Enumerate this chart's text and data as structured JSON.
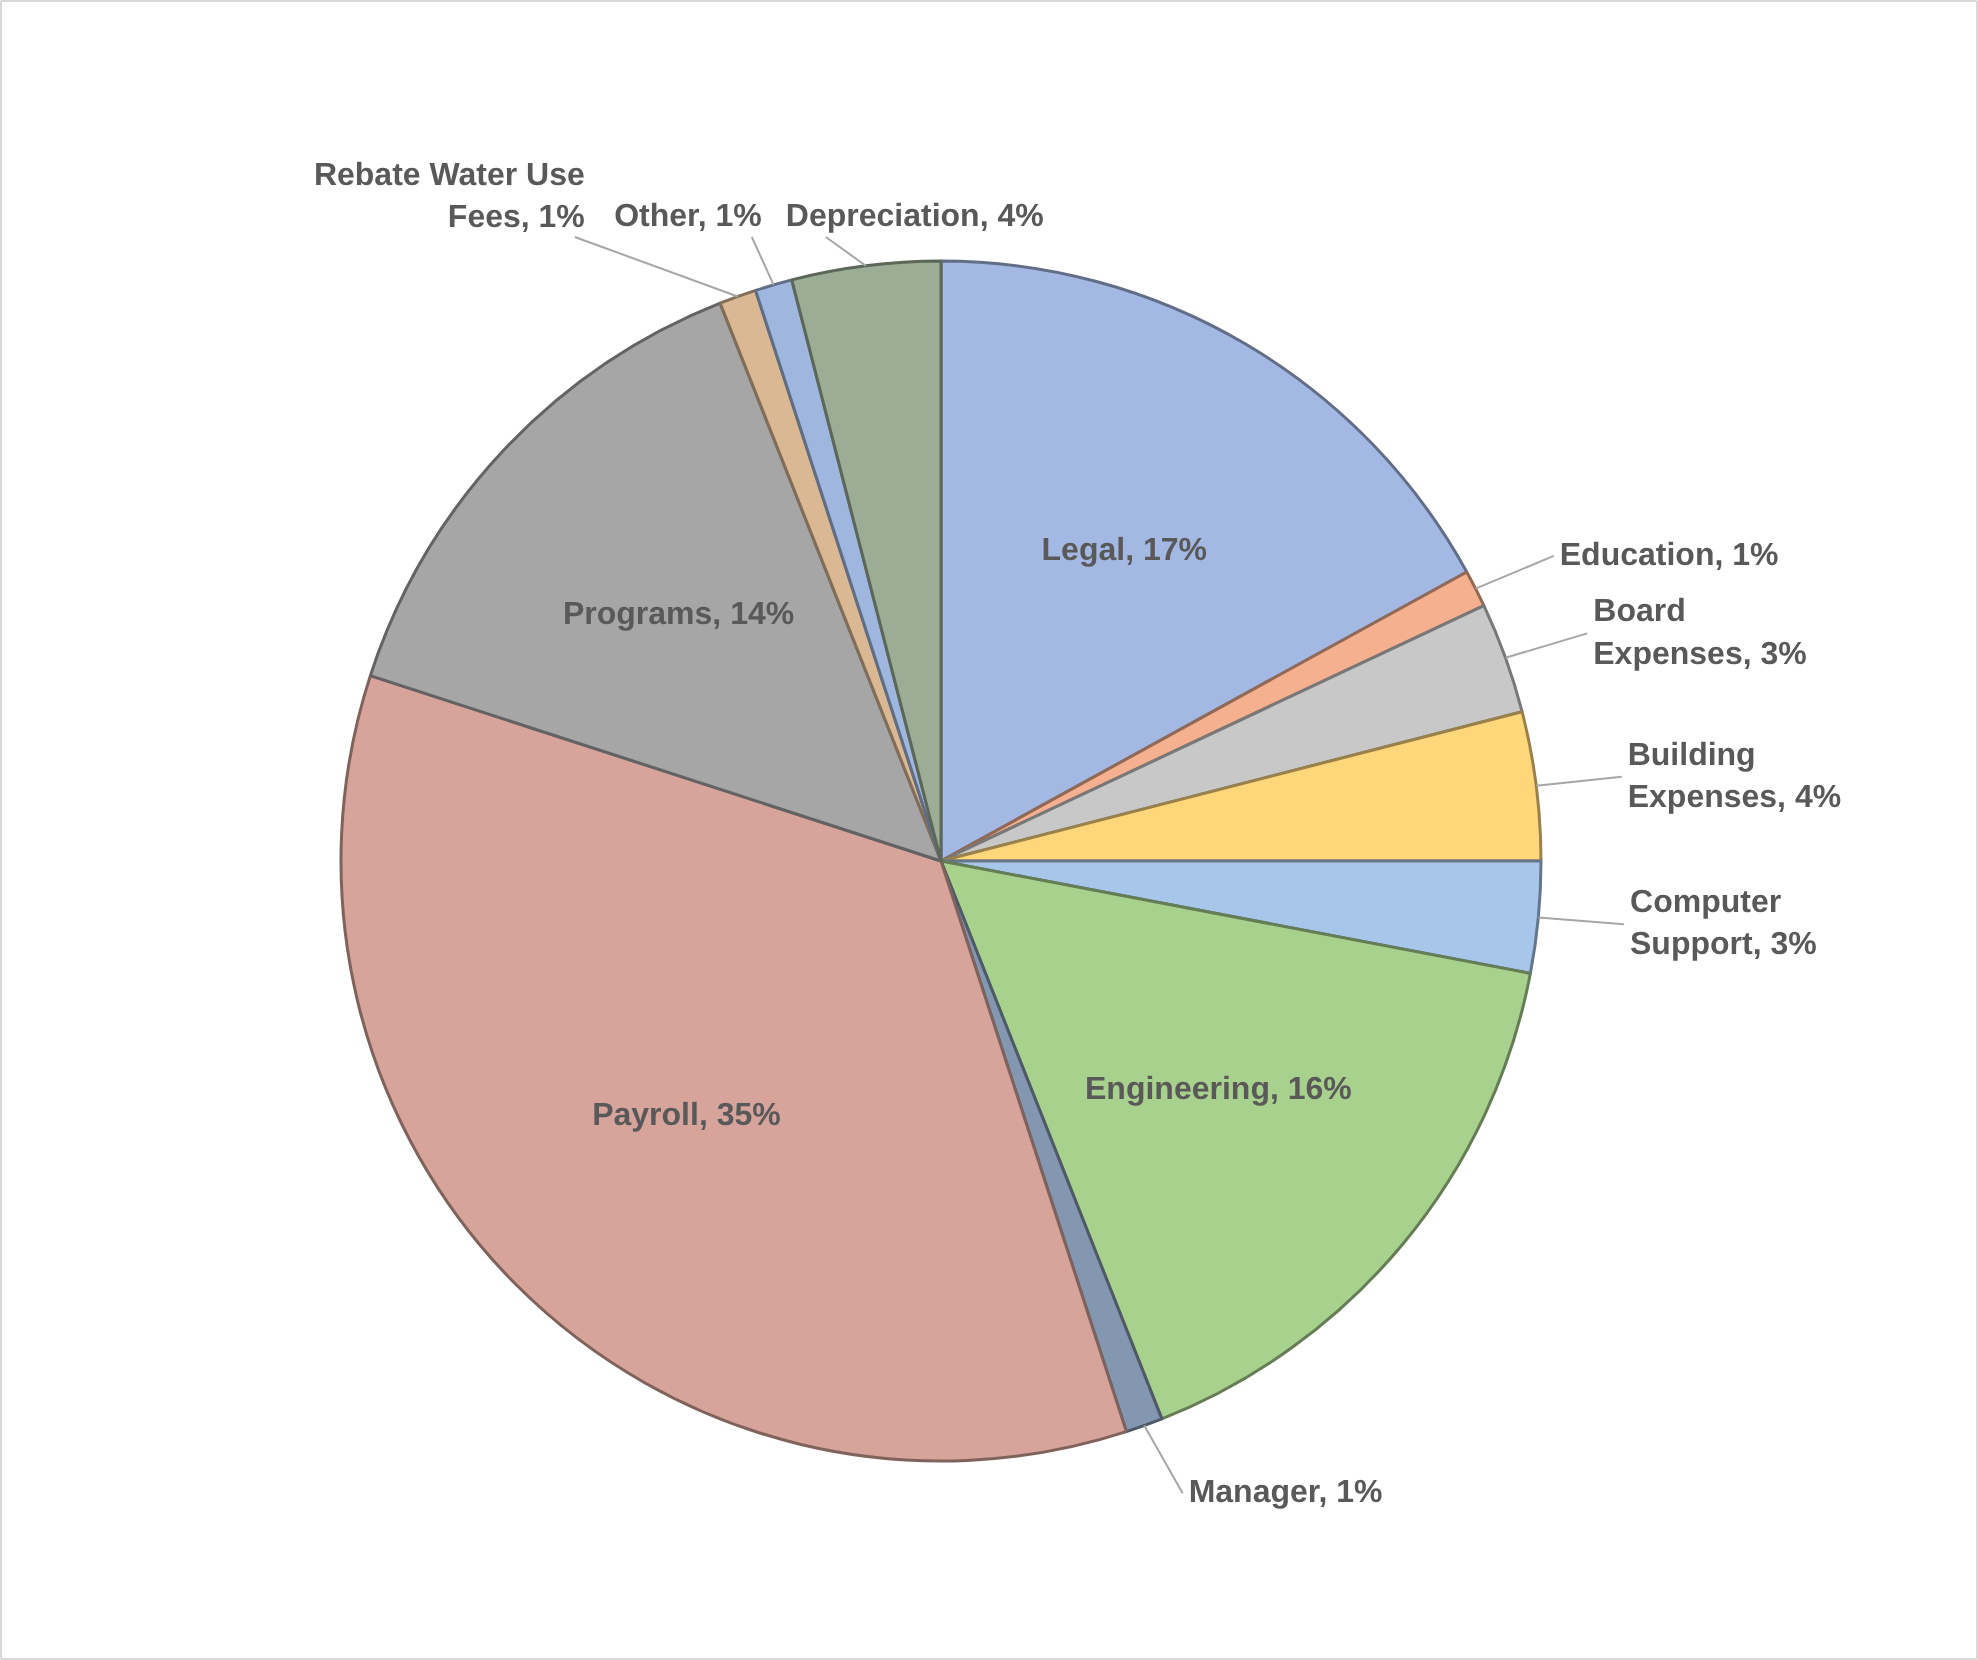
{
  "chart_data": {
    "type": "pie",
    "categories": [
      "Legal",
      "Education",
      "Board Expenses",
      "Building Expenses",
      "Computer Support",
      "Engineering",
      "Manager",
      "Payroll",
      "Programs",
      "Rebate Water Use Fees",
      "Other",
      "Depreciation"
    ],
    "values": [
      17,
      1,
      3,
      4,
      3,
      16,
      1,
      35,
      14,
      1,
      1,
      4
    ],
    "value_labels": [
      "17%",
      "1%",
      "3%",
      "4%",
      "3%",
      "16%",
      "1%",
      "35%",
      "14%",
      "1%",
      "1%",
      "4%"
    ],
    "colors": [
      "#a4b8e4",
      "#f4b08f",
      "#c8c8c8",
      "#ffd77a",
      "#a8c6ea",
      "#a9d18e",
      "#8497b0",
      "#d6a49a",
      "#a6a6a6",
      "#d9b893",
      "#9fb6de",
      "#9bad94"
    ]
  }
}
